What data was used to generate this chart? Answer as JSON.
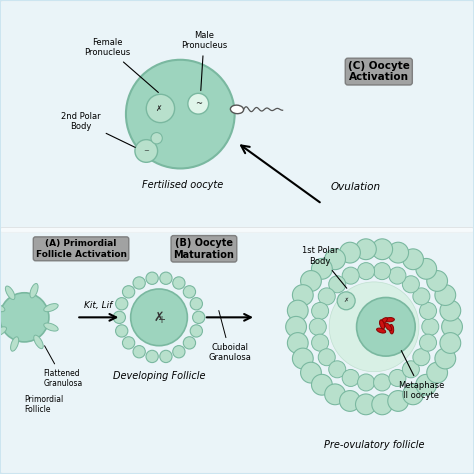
{
  "bg_color": "#cce5f0",
  "cell_color": "#9dd4be",
  "cell_edge": "#7ab8a0",
  "small_cell_color": "#b8e0cc",
  "label_box_color": "#999999",
  "label_box_edge": "#777777",
  "white_bg": "#ffffff",
  "figsize": [
    4.74,
    4.74
  ],
  "dpi": 100,
  "xlim": [
    0,
    10
  ],
  "ylim": [
    0,
    10
  ]
}
